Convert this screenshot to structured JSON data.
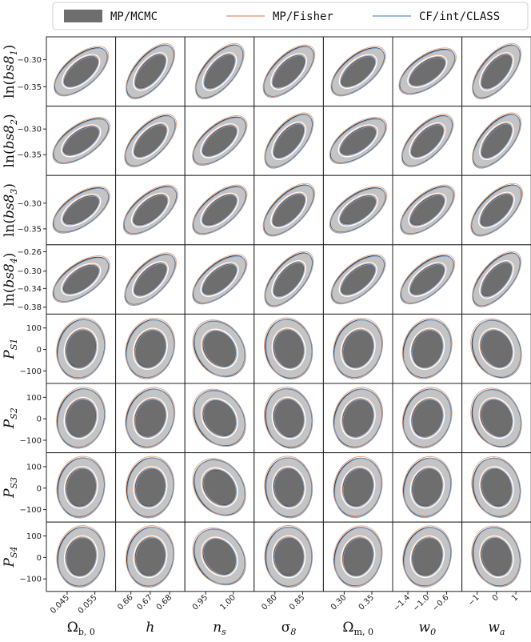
{
  "chart_data": {
    "type": "scatter",
    "title": "",
    "legend": {
      "placement": "top",
      "entries": [
        {
          "label": "MP/MCMC",
          "style": "filled",
          "color": "#6e6e6e"
        },
        {
          "label": "MP/Fisher",
          "style": "line",
          "color": "#e8a17e"
        },
        {
          "label": "CF/int/CLASS",
          "style": "line",
          "color": "#7aa2d4"
        }
      ]
    },
    "columns": [
      {
        "label": "Ω_b,0",
        "sub": "b, 0",
        "base": "Ω",
        "ticks": [
          "0.045",
          "0.055"
        ]
      },
      {
        "label": "h",
        "sub": "",
        "base": "h",
        "ticks": [
          "0.66",
          "0.67",
          "0.68"
        ]
      },
      {
        "label": "n_s",
        "sub": "s",
        "base": "n",
        "ticks": [
          "0.95",
          "1.00"
        ]
      },
      {
        "label": "σ_8",
        "sub": "8",
        "base": "σ",
        "ticks": [
          "0.80",
          "0.85"
        ]
      },
      {
        "label": "Ω_m,0",
        "sub": "m, 0",
        "base": "Ω",
        "ticks": [
          "0.30",
          "0.35"
        ]
      },
      {
        "label": "w_0",
        "sub": "0",
        "base": "w",
        "ticks": [
          "−1.4",
          "−1.0",
          "−0.6"
        ]
      },
      {
        "label": "w_a",
        "sub": "a",
        "base": "w",
        "ticks": [
          "−1",
          "0",
          "1"
        ]
      }
    ],
    "rows": [
      {
        "label": "ln(bs8_1)",
        "text_pre": "ln(",
        "text_var": "bs8",
        "text_sub": "1",
        "text_post": ")",
        "ticks": [
          "−0.30",
          "−0.35"
        ],
        "tick_fracs": [
          0.33,
          0.72
        ],
        "angles": [
          40,
          50,
          50,
          45,
          40,
          35,
          50
        ]
      },
      {
        "label": "ln(bs8_2)",
        "text_pre": "ln(",
        "text_var": "bs8",
        "text_sub": "2",
        "text_post": ")",
        "ticks": [
          "−0.30",
          "−0.35"
        ],
        "tick_fracs": [
          0.33,
          0.7
        ],
        "angles": [
          35,
          45,
          40,
          50,
          35,
          45,
          50
        ]
      },
      {
        "label": "ln(bs8_3)",
        "text_pre": "ln(",
        "text_var": "bs8",
        "text_sub": "3",
        "text_post": ")",
        "ticks": [
          "−0.30",
          "−0.35"
        ],
        "tick_fracs": [
          0.4,
          0.77
        ],
        "angles": [
          35,
          40,
          40,
          45,
          35,
          40,
          45
        ]
      },
      {
        "label": "ln(bs8_4)",
        "text_pre": "ln(",
        "text_var": "bs8",
        "text_sub": "4",
        "text_post": ")",
        "ticks": [
          "−0.26",
          "−0.30",
          "−0.34",
          "−0.38"
        ],
        "tick_fracs": [
          0.1,
          0.38,
          0.63,
          0.9
        ],
        "angles": [
          35,
          45,
          40,
          50,
          40,
          40,
          50
        ]
      },
      {
        "label": "P_S1",
        "text_pre": "",
        "text_var": "P",
        "text_sub": "S1",
        "text_post": "",
        "ticks": [
          "100",
          "0",
          "−100"
        ],
        "tick_fracs": [
          0.2,
          0.51,
          0.82
        ],
        "angles": [
          75,
          70,
          125,
          100,
          70,
          70,
          115
        ]
      },
      {
        "label": "P_S2",
        "text_pre": "",
        "text_var": "P",
        "text_sub": "S2",
        "text_post": "",
        "ticks": [
          "100",
          "0",
          "−100"
        ],
        "tick_fracs": [
          0.2,
          0.51,
          0.82
        ],
        "angles": [
          75,
          70,
          125,
          100,
          70,
          70,
          115
        ]
      },
      {
        "label": "P_S3",
        "text_pre": "",
        "text_var": "P",
        "text_sub": "S3",
        "text_post": "",
        "ticks": [
          "100",
          "0",
          "−100"
        ],
        "tick_fracs": [
          0.2,
          0.51,
          0.82
        ],
        "angles": [
          80,
          80,
          125,
          95,
          75,
          75,
          105
        ]
      },
      {
        "label": "P_S4",
        "text_pre": "",
        "text_var": "P",
        "text_sub": "S4",
        "text_post": "",
        "ticks": [
          "100",
          "0",
          "−100"
        ],
        "tick_fracs": [
          0.2,
          0.51,
          0.82
        ],
        "angles": [
          80,
          80,
          125,
          90,
          75,
          75,
          105
        ]
      }
    ],
    "grid": false,
    "description_note": "Triangle-plot subset: 68% and 95% confidence contours of bias parameters vs cosmological parameters"
  }
}
